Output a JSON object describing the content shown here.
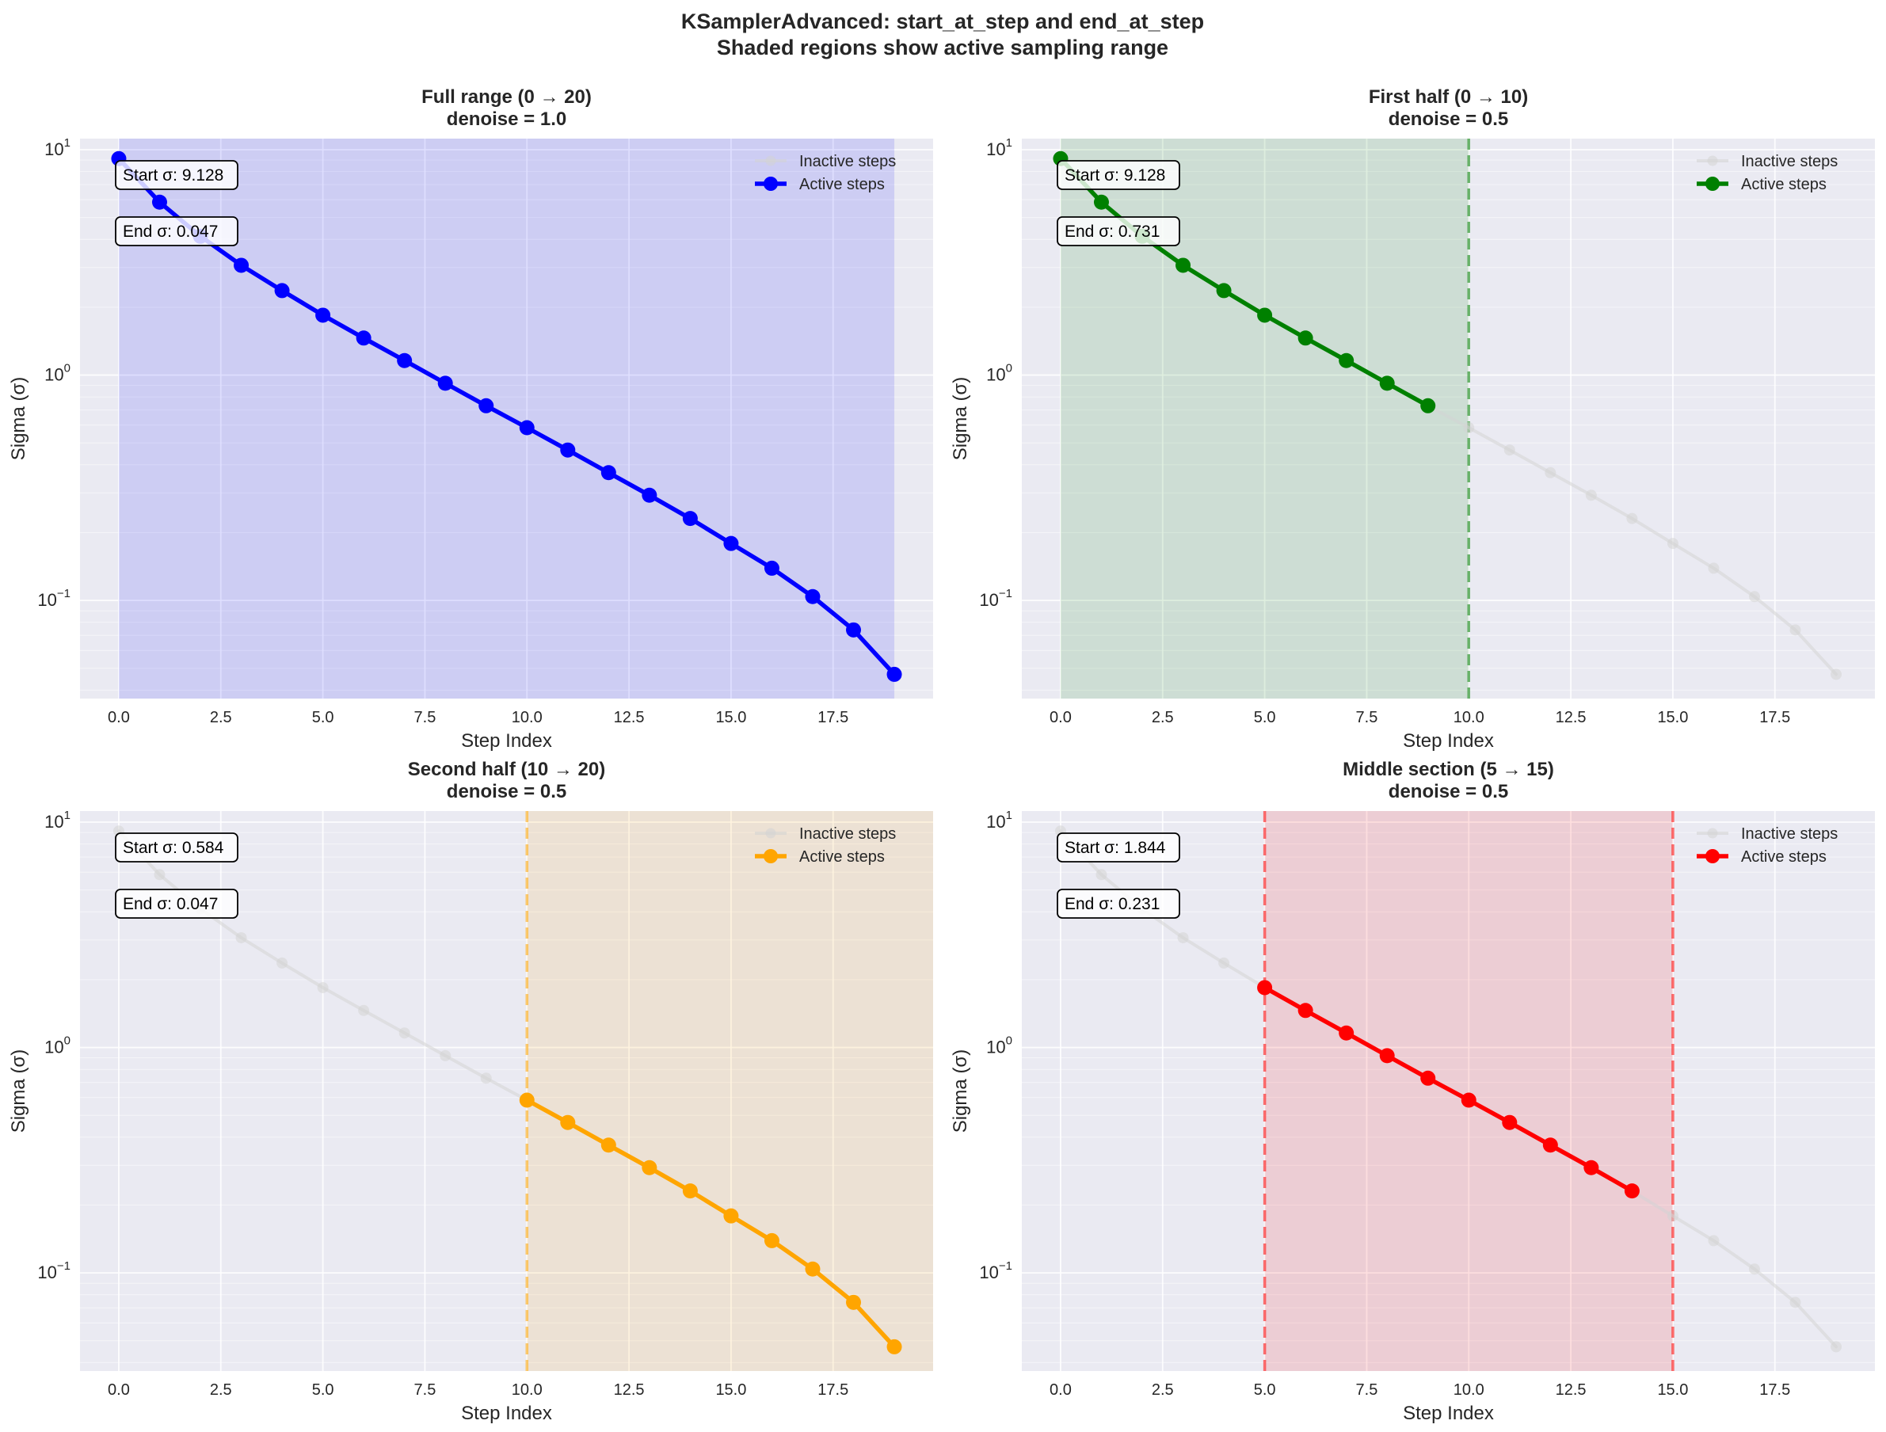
{
  "figure": {
    "title_line1": "KSamplerAdvanced: start_at_step and end_at_step",
    "title_line2": "Shaded regions show active sampling range"
  },
  "colors": {
    "axes_bg": "#eaeaf2",
    "grid": "#ffffff",
    "inactive": "#d3d3d3",
    "text": "#262626"
  },
  "chart_data": [
    {
      "type": "line",
      "title_line1": "Full range (0 → 20)",
      "title_line2": "denoise = 1.0",
      "xlabel": "Step Index",
      "ylabel": "Sigma (σ)",
      "yscale": "log",
      "xlim": [
        -0.95,
        19.95
      ],
      "ylim": [
        0.0367,
        11.2
      ],
      "xticks": [
        0.0,
        2.5,
        5.0,
        7.5,
        10.0,
        12.5,
        15.0,
        17.5
      ],
      "xtick_labels": [
        "0.0",
        "2.5",
        "5.0",
        "7.5",
        "10.0",
        "12.5",
        "15.0",
        "17.5"
      ],
      "ytick_labels": {
        "base": "10",
        "exponents": [
          "1",
          "0",
          "−1"
        ],
        "values": [
          10,
          1,
          0.1
        ]
      },
      "x": [
        0,
        1,
        2,
        3,
        4,
        5,
        6,
        7,
        8,
        9,
        10,
        11,
        12,
        13,
        14,
        15,
        16,
        17,
        18,
        19
      ],
      "sigmas": [
        9.128,
        5.85,
        4.13,
        3.07,
        2.37,
        1.844,
        1.46,
        1.16,
        0.92,
        0.731,
        0.584,
        0.465,
        0.369,
        0.293,
        0.231,
        0.179,
        0.139,
        0.104,
        0.074,
        0.047
      ],
      "series": [
        {
          "name": "Inactive steps",
          "start": 0,
          "end": 20,
          "color": "#d3d3d3"
        },
        {
          "name": "Active steps",
          "start": 0,
          "end": 20,
          "color": "#0000ff"
        }
      ],
      "shade_range": [
        0,
        19
      ],
      "shade_color": "#0000ff",
      "vlines": [],
      "legend_position": "top-right",
      "annotations": [
        "Start σ: 9.128",
        "End σ: 0.047"
      ]
    },
    {
      "type": "line",
      "title_line1": "First half (0 → 10)",
      "title_line2": "denoise = 0.5",
      "xlabel": "Step Index",
      "ylabel": "Sigma (σ)",
      "yscale": "log",
      "xlim": [
        -0.95,
        19.95
      ],
      "ylim": [
        0.0367,
        11.2
      ],
      "xticks": [
        0.0,
        2.5,
        5.0,
        7.5,
        10.0,
        12.5,
        15.0,
        17.5
      ],
      "xtick_labels": [
        "0.0",
        "2.5",
        "5.0",
        "7.5",
        "10.0",
        "12.5",
        "15.0",
        "17.5"
      ],
      "ytick_labels": {
        "base": "10",
        "exponents": [
          "1",
          "0",
          "−1"
        ],
        "values": [
          10,
          1,
          0.1
        ]
      },
      "x": [
        0,
        1,
        2,
        3,
        4,
        5,
        6,
        7,
        8,
        9,
        10,
        11,
        12,
        13,
        14,
        15,
        16,
        17,
        18,
        19
      ],
      "sigmas": [
        9.128,
        5.85,
        4.13,
        3.07,
        2.37,
        1.844,
        1.46,
        1.16,
        0.92,
        0.731,
        0.584,
        0.465,
        0.369,
        0.293,
        0.231,
        0.179,
        0.139,
        0.104,
        0.074,
        0.047
      ],
      "series": [
        {
          "name": "Inactive steps",
          "start": 0,
          "end": 20,
          "color": "#d3d3d3"
        },
        {
          "name": "Active steps",
          "start": 0,
          "end": 10,
          "color": "#008000"
        }
      ],
      "shade_range": [
        0,
        10
      ],
      "shade_color": "#008000",
      "vlines": [
        10
      ],
      "legend_position": "top-right",
      "annotations": [
        "Start σ: 9.128",
        "End σ: 0.731"
      ]
    },
    {
      "type": "line",
      "title_line1": "Second half (10 → 20)",
      "title_line2": "denoise = 0.5",
      "xlabel": "Step Index",
      "ylabel": "Sigma (σ)",
      "yscale": "log",
      "xlim": [
        -0.95,
        19.95
      ],
      "ylim": [
        0.0367,
        11.2
      ],
      "xticks": [
        0.0,
        2.5,
        5.0,
        7.5,
        10.0,
        12.5,
        15.0,
        17.5
      ],
      "xtick_labels": [
        "0.0",
        "2.5",
        "5.0",
        "7.5",
        "10.0",
        "12.5",
        "15.0",
        "17.5"
      ],
      "ytick_labels": {
        "base": "10",
        "exponents": [
          "1",
          "0",
          "−1"
        ],
        "values": [
          10,
          1,
          0.1
        ]
      },
      "x": [
        0,
        1,
        2,
        3,
        4,
        5,
        6,
        7,
        8,
        9,
        10,
        11,
        12,
        13,
        14,
        15,
        16,
        17,
        18,
        19
      ],
      "sigmas": [
        9.128,
        5.85,
        4.13,
        3.07,
        2.37,
        1.844,
        1.46,
        1.16,
        0.92,
        0.731,
        0.584,
        0.465,
        0.369,
        0.293,
        0.231,
        0.179,
        0.139,
        0.104,
        0.074,
        0.047
      ],
      "series": [
        {
          "name": "Inactive steps",
          "start": 0,
          "end": 20,
          "color": "#d3d3d3"
        },
        {
          "name": "Active steps",
          "start": 10,
          "end": 20,
          "color": "#ffa500"
        }
      ],
      "shade_range": [
        10,
        20
      ],
      "shade_color": "#ffa500",
      "vlines": [
        10
      ],
      "legend_position": "top-right",
      "annotations": [
        "Start σ: 0.584",
        "End σ: 0.047"
      ]
    },
    {
      "type": "line",
      "title_line1": "Middle section (5 → 15)",
      "title_line2": "denoise = 0.5",
      "xlabel": "Step Index",
      "ylabel": "Sigma (σ)",
      "yscale": "log",
      "xlim": [
        -0.95,
        19.95
      ],
      "ylim": [
        0.0367,
        11.2
      ],
      "xticks": [
        0.0,
        2.5,
        5.0,
        7.5,
        10.0,
        12.5,
        15.0,
        17.5
      ],
      "xtick_labels": [
        "0.0",
        "2.5",
        "5.0",
        "7.5",
        "10.0",
        "12.5",
        "15.0",
        "17.5"
      ],
      "ytick_labels": {
        "base": "10",
        "exponents": [
          "1",
          "0",
          "−1"
        ],
        "values": [
          10,
          1,
          0.1
        ]
      },
      "x": [
        0,
        1,
        2,
        3,
        4,
        5,
        6,
        7,
        8,
        9,
        10,
        11,
        12,
        13,
        14,
        15,
        16,
        17,
        18,
        19
      ],
      "sigmas": [
        9.128,
        5.85,
        4.13,
        3.07,
        2.37,
        1.844,
        1.46,
        1.16,
        0.92,
        0.731,
        0.584,
        0.465,
        0.369,
        0.293,
        0.231,
        0.179,
        0.139,
        0.104,
        0.074,
        0.047
      ],
      "series": [
        {
          "name": "Inactive steps",
          "start": 0,
          "end": 20,
          "color": "#d3d3d3"
        },
        {
          "name": "Active steps",
          "start": 5,
          "end": 15,
          "color": "#ff0000"
        }
      ],
      "shade_range": [
        5,
        15
      ],
      "shade_color": "#ff0000",
      "vlines": [
        5,
        15
      ],
      "legend_position": "top-right",
      "annotations": [
        "Start σ: 1.844",
        "End σ: 0.231"
      ]
    }
  ]
}
